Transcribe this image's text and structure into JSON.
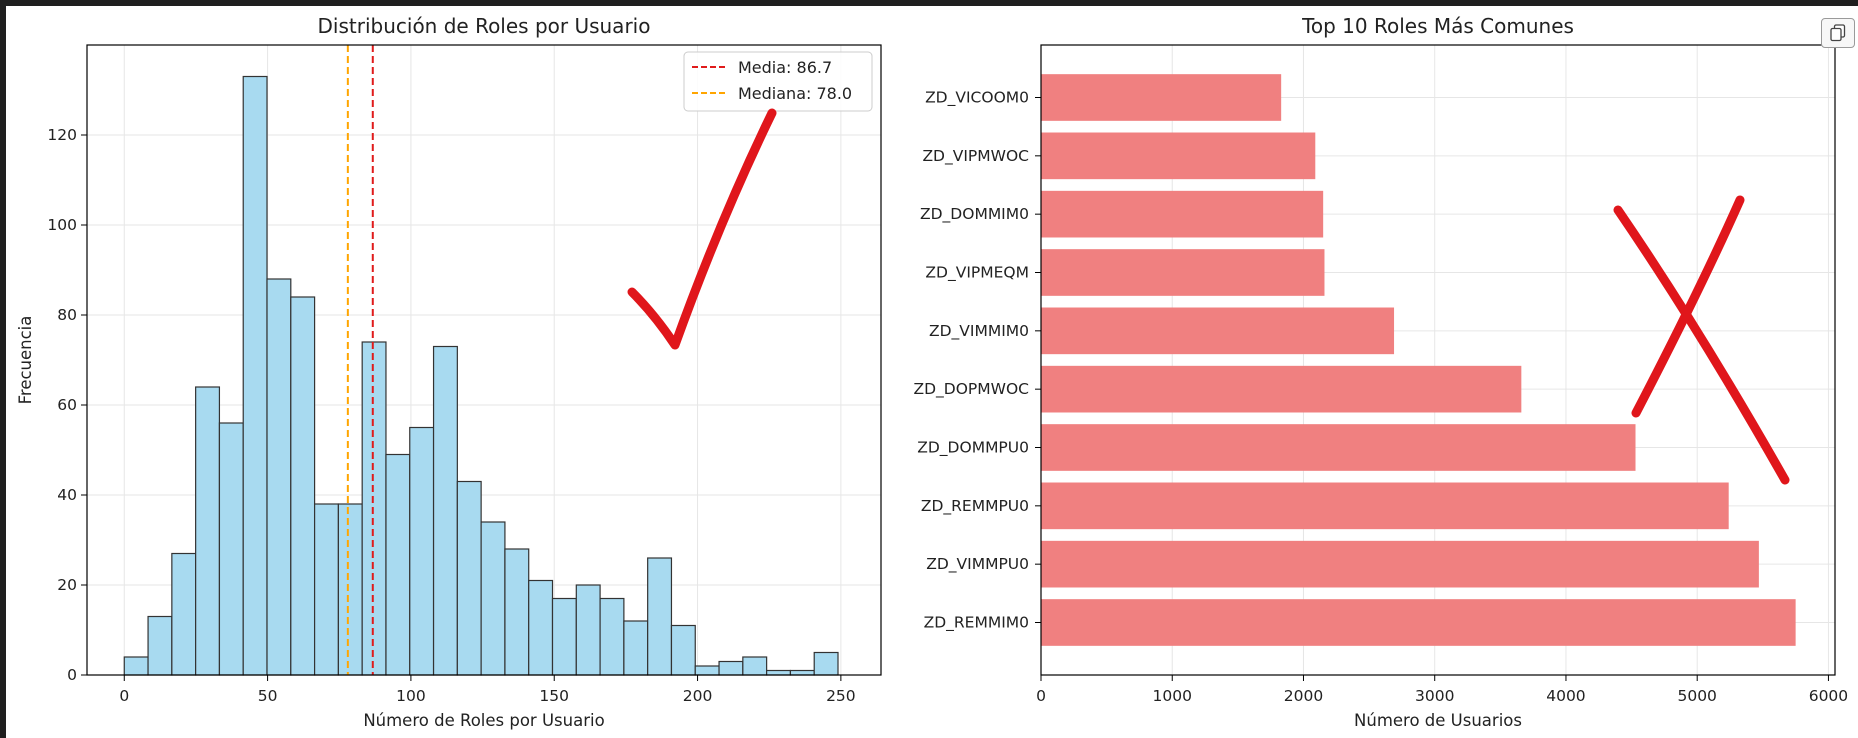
{
  "chart_data": [
    {
      "type": "bar",
      "title": "Distribución de Roles por Usuario",
      "xlabel": "Número de Roles por Usuario",
      "ylabel": "Frecuencia",
      "xlim": [
        -13,
        264
      ],
      "ylim": [
        0,
        140
      ],
      "xticks": [
        "0",
        "50",
        "100",
        "150",
        "200",
        "250"
      ],
      "yticks": [
        "0",
        "20",
        "40",
        "60",
        "80",
        "100",
        "120"
      ],
      "grid": true,
      "bin_edges": [
        0,
        8.3,
        16.6,
        24.9,
        33.2,
        41.5,
        49.8,
        58.1,
        66.4,
        74.7,
        83.0,
        91.3,
        99.6,
        107.9,
        116.2,
        124.5,
        132.8,
        141.1,
        149.4,
        157.7,
        166.0,
        174.3,
        182.6,
        190.9,
        199.2,
        207.5,
        215.8,
        224.1,
        232.4,
        240.7,
        249.0
      ],
      "values": [
        4,
        13,
        27,
        64,
        56,
        133,
        88,
        84,
        38,
        38,
        74,
        49,
        55,
        73,
        43,
        34,
        28,
        21,
        17,
        20,
        17,
        12,
        26,
        11,
        2,
        3,
        4,
        1,
        1,
        5
      ],
      "bar_color": "#a8daf0",
      "edge_color": "#333333",
      "vlines": [
        {
          "label": "Media: 86.7",
          "x": 86.7,
          "color": "#e01b1b"
        },
        {
          "label": "Mediana: 78.0",
          "x": 78.0,
          "color": "#ffa500"
        }
      ],
      "legend_position": "top-right"
    },
    {
      "type": "bar",
      "orientation": "horizontal",
      "title": "Top 10 Roles Más Comunes",
      "xlabel": "Número de Usuarios",
      "ylabel": "",
      "xlim": [
        0,
        6050
      ],
      "xticks": [
        "0",
        "1000",
        "2000",
        "3000",
        "4000",
        "5000",
        "6000"
      ],
      "grid": true,
      "categories": [
        "ZD_REMMIM0",
        "ZD_VIMMPU0",
        "ZD_REMMPU0",
        "ZD_DOMMPU0",
        "ZD_DOPMWOC",
        "ZD_VIMMIM0",
        "ZD_VIPMEQM",
        "ZD_DOMMIM0",
        "ZD_VIPMWOC",
        "ZD_VICOOM0"
      ],
      "values": [
        5750,
        5470,
        5240,
        4530,
        3660,
        2690,
        2160,
        2150,
        2090,
        1830
      ],
      "bar_color": "#f08080"
    }
  ],
  "annotations": {
    "checkmark_color": "#e0161b",
    "cross_color": "#e0161b"
  },
  "toolbar": {
    "copy_icon": "copy-icon"
  }
}
